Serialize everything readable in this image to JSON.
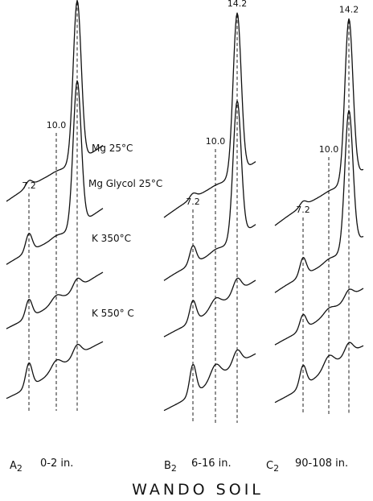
{
  "chart_data": {
    "type": "line",
    "title": "WANDO SOIL",
    "x_unit": "Å",
    "peak_positions": [
      {
        "label": "7.2",
        "d": 7.2
      },
      {
        "label": "10.0",
        "d": 10.0
      },
      {
        "label": "14.2",
        "d": 14.2
      }
    ],
    "treatments": [
      "Mg  25°C",
      "Mg Glycol 25°C",
      "K 350°C",
      "K 550° C"
    ],
    "panels": [
      {
        "horizon": "A2",
        "horizon_letter": "A",
        "horizon_sub": "2",
        "depth": "0-2 in.",
        "peak_heights": [
          {
            "treatment": "Mg  25°C",
            "d7_2": 0.1,
            "d10_0": 0.02,
            "d14_2": 1.0
          },
          {
            "treatment": "Mg Glycol 25°C",
            "d7_2": 0.3,
            "d10_0": 0.05,
            "d14_2": 0.9
          },
          {
            "treatment": "K 350°C",
            "d7_2": 0.3,
            "d10_0": 0.15,
            "d14_2": 0.18
          },
          {
            "treatment": "K 550° C",
            "d7_2": 0.4,
            "d10_0": 0.2,
            "d14_2": 0.2
          }
        ]
      },
      {
        "horizon": "B2",
        "horizon_letter": "B",
        "horizon_sub": "2",
        "depth": "6-16 in.",
        "peak_heights": [
          {
            "treatment": "Mg  25°C",
            "d7_2": 0.08,
            "d10_0": 0.02,
            "d14_2": 1.0
          },
          {
            "treatment": "Mg Glycol 25°C",
            "d7_2": 0.3,
            "d10_0": 0.05,
            "d14_2": 0.85
          },
          {
            "treatment": "K 350°C",
            "d7_2": 0.35,
            "d10_0": 0.2,
            "d14_2": 0.25
          },
          {
            "treatment": "K 550° C",
            "d7_2": 0.5,
            "d10_0": 0.3,
            "d14_2": 0.25
          }
        ]
      },
      {
        "horizon": "C2",
        "horizon_letter": "C",
        "horizon_sub": "2",
        "depth": "90-108 in.",
        "peak_heights": [
          {
            "treatment": "Mg  25°C",
            "d7_2": 0.08,
            "d10_0": 0.02,
            "d14_2": 1.0
          },
          {
            "treatment": "Mg Glycol 25°C",
            "d7_2": 0.3,
            "d10_0": 0.05,
            "d14_2": 0.85
          },
          {
            "treatment": "K 350°C",
            "d7_2": 0.25,
            "d10_0": 0.1,
            "d14_2": 0.15
          },
          {
            "treatment": "K 550° C",
            "d7_2": 0.35,
            "d10_0": 0.25,
            "d14_2": 0.2
          }
        ]
      }
    ]
  }
}
